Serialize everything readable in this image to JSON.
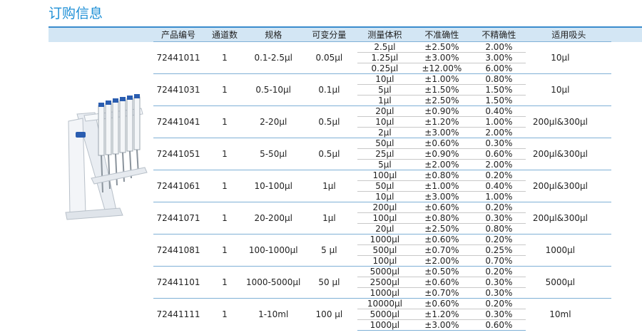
{
  "header": {
    "title": "订购信息"
  },
  "table": {
    "columns": [
      "产品编号",
      "通道数",
      "规格",
      "可变分量",
      "测量体积",
      "不准确性",
      "不精确性",
      "适用吸头"
    ],
    "rows": [
      {
        "code": "72441011",
        "channels": "1",
        "spec": "0.1-2.5µl",
        "variable": "0.05µl",
        "tip": "10µl",
        "measurements": [
          [
            "2.5µl",
            "±2.50%",
            "2.00%"
          ],
          [
            "1.25µl",
            "±3.00%",
            "3.00%"
          ],
          [
            "0.25µl",
            "±12.00%",
            "6.00%"
          ]
        ]
      },
      {
        "code": "72441031",
        "channels": "1",
        "spec": "0.5-10µl",
        "variable": "0.1µl",
        "tip": "10µl",
        "measurements": [
          [
            "10µl",
            "±1.00%",
            "0.80%"
          ],
          [
            "5µl",
            "±1.50%",
            "1.50%"
          ],
          [
            "1µl",
            "±2.50%",
            "1.50%"
          ]
        ]
      },
      {
        "code": "72441041",
        "channels": "1",
        "spec": "2-20µl",
        "variable": "0.5µl",
        "tip": "200µl&300µl",
        "measurements": [
          [
            "20µl",
            "±0.90%",
            "0.40%"
          ],
          [
            "10µl",
            "±1.20%",
            "1.00%"
          ],
          [
            "2µl",
            "±3.00%",
            "2.00%"
          ]
        ]
      },
      {
        "code": "72441051",
        "channels": "1",
        "spec": "5-50µl",
        "variable": "0.5µl",
        "tip": "200µl&300µl",
        "measurements": [
          [
            "50µl",
            "±0.60%",
            "0.30%"
          ],
          [
            "25µl",
            "±0.90%",
            "0.60%"
          ],
          [
            "5µl",
            "±2.00%",
            "2.00%"
          ]
        ]
      },
      {
        "code": "72441061",
        "channels": "1",
        "spec": "10-100µl",
        "variable": "1µl",
        "tip": "200µl&300µl",
        "measurements": [
          [
            "100µl",
            "±0.80%",
            "0.20%"
          ],
          [
            "50µl",
            "±1.00%",
            "0.40%"
          ],
          [
            "10µl",
            "±3.00%",
            "1.00%"
          ]
        ]
      },
      {
        "code": "72441071",
        "channels": "1",
        "spec": "20-200µl",
        "variable": "1µl",
        "tip": "200µl&300µl",
        "measurements": [
          [
            "200µl",
            "±0.60%",
            "0.20%"
          ],
          [
            "100µl",
            "±0.80%",
            "0.30%"
          ],
          [
            "20µl",
            "±2.50%",
            "0.80%"
          ]
        ]
      },
      {
        "code": "72441081",
        "channels": "1",
        "spec": "100-1000µl",
        "variable": "5 µl",
        "tip": "1000µl",
        "measurements": [
          [
            "1000µl",
            "±0.60%",
            "0.20%"
          ],
          [
            "500µl",
            "±0.70%",
            "0.25%"
          ],
          [
            "100µl",
            "±2.00%",
            "0.70%"
          ]
        ]
      },
      {
        "code": "72441101",
        "channels": "1",
        "spec": "1000-5000µl",
        "variable": "50 µl",
        "tip": "5000µl",
        "measurements": [
          [
            "5000µl",
            "±0.50%",
            "0.20%"
          ],
          [
            "2500µl",
            "±0.60%",
            "0.30%"
          ],
          [
            "1000µl",
            "±0.70%",
            "0.30%"
          ]
        ]
      },
      {
        "code": "72441111",
        "channels": "1",
        "spec": "1-10ml",
        "variable": "100 µl",
        "tip": "10ml",
        "measurements": [
          [
            "10000µl",
            "±0.60%",
            "0.20%"
          ],
          [
            "5000µl",
            "±1.20%",
            "0.30%"
          ],
          [
            "1000µl",
            "±3.00%",
            "0.60%"
          ]
        ]
      }
    ]
  }
}
